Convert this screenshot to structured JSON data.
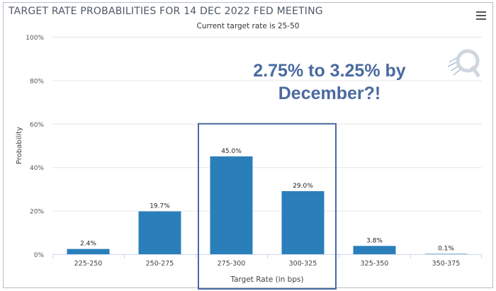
{
  "chart_data": {
    "type": "bar",
    "title": "TARGET RATE PROBABILITIES FOR 14 DEC 2022 FED MEETING",
    "subtitle": "Current target rate is 25-50",
    "xlabel": "Target Rate (in bps)",
    "ylabel": "Probability",
    "ylim": [
      0,
      100
    ],
    "yticks": [
      "0%",
      "20%",
      "40%",
      "60%",
      "80%",
      "100%"
    ],
    "categories": [
      "225-250",
      "250-275",
      "275-300",
      "300-325",
      "325-350",
      "350-375"
    ],
    "values": [
      2.4,
      19.7,
      45.0,
      29.0,
      3.8,
      0.1
    ],
    "data_labels": [
      "2.4%",
      "19.7%",
      "45.0%",
      "29.0%",
      "3.8%",
      "0.1%"
    ],
    "annotation": {
      "line1": "2.75% to 3.25% by",
      "line2": "December?!"
    },
    "highlight_range": [
      "275-300",
      "300-325"
    ],
    "bar_color": "#2a7fbb",
    "highlight_color": "#4a6aa0"
  },
  "menu_icon": "hamburger-menu-icon",
  "watermark_icon": "q-logo-icon"
}
